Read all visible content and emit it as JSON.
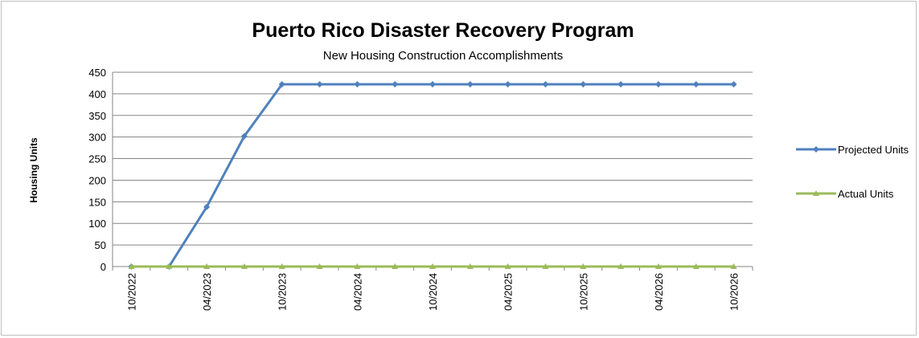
{
  "chart_data": {
    "type": "line",
    "title": "Puerto Rico Disaster Recovery Program",
    "subtitle": "New Housing Construction Accomplishments",
    "y_label": "Housing Units",
    "categories": [
      "10/2022",
      null,
      "04/2023",
      null,
      "10/2023",
      null,
      "04/2024",
      null,
      "10/2024",
      null,
      "04/2025",
      null,
      "10/2025",
      null,
      "04/2026",
      null,
      "10/2026"
    ],
    "series": [
      {
        "name": "Projected Units",
        "color": "#4f81bd",
        "marker": "diamond",
        "values": [
          0,
          0,
          138,
          302,
          422,
          422,
          422,
          422,
          422,
          422,
          422,
          422,
          422,
          422,
          422,
          422,
          422
        ]
      },
      {
        "name": "Actual Units",
        "color": "#9bbb59",
        "marker": "triangle",
        "values": [
          0,
          0,
          0,
          0,
          0,
          0,
          0,
          0,
          0,
          0,
          0,
          0,
          0,
          0,
          0,
          0,
          0
        ]
      }
    ],
    "ylim": [
      0,
      450
    ],
    "yticks": [
      0,
      50,
      100,
      150,
      200,
      250,
      300,
      350,
      400,
      450
    ],
    "grid": true,
    "legend": "right"
  }
}
